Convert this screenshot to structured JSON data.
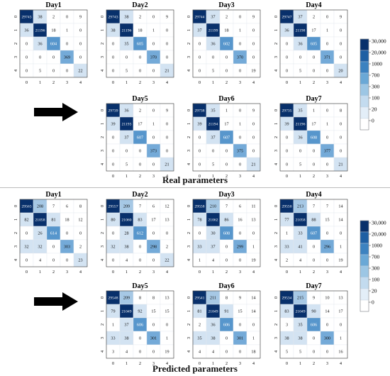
{
  "captions": {
    "real": "Real parameters",
    "predicted": "Predicted parameters"
  },
  "colorbar": {
    "ticks": [
      "30,000",
      "20,000",
      "1000",
      "700",
      "300",
      "100",
      "20",
      "0"
    ],
    "colors": [
      "#08306b",
      "#1e5fa3",
      "#3c82c0",
      "#6aa8d6",
      "#9cc6e4",
      "#c3dbef",
      "#e3eef8",
      "#ffffff"
    ]
  },
  "chart_data": [
    {
      "type": "heatmap",
      "group": "Real parameters",
      "axis_ticks": [
        "0",
        "1",
        "2",
        "3",
        "4"
      ],
      "matrices": [
        {
          "title": "Day1",
          "values": [
            [
              29743,
              38,
              2,
              0,
              9
            ],
            [
              36,
              21196,
              18,
              1,
              0
            ],
            [
              0,
              36,
              604,
              0,
              0
            ],
            [
              0,
              0,
              0,
              369,
              0
            ],
            [
              0,
              5,
              0,
              0,
              22
            ]
          ]
        },
        {
          "title": "Day2",
          "values": [
            [
              29743,
              38,
              2,
              0,
              9
            ],
            [
              38,
              21196,
              18,
              1,
              0
            ],
            [
              0,
              35,
              605,
              0,
              0
            ],
            [
              0,
              0,
              0,
              370,
              0
            ],
            [
              0,
              5,
              0,
              0,
              21
            ]
          ]
        },
        {
          "title": "Day3",
          "values": [
            [
              29744,
              37,
              2,
              0,
              9
            ],
            [
              37,
              21199,
              18,
              1,
              0
            ],
            [
              0,
              36,
              602,
              0,
              0
            ],
            [
              0,
              0,
              0,
              370,
              0
            ],
            [
              0,
              5,
              0,
              0,
              19
            ]
          ]
        },
        {
          "title": "Day4",
          "values": [
            [
              29747,
              37,
              2,
              0,
              9
            ],
            [
              36,
              21198,
              17,
              1,
              0
            ],
            [
              0,
              36,
              605,
              0,
              0
            ],
            [
              0,
              0,
              0,
              371,
              0
            ],
            [
              0,
              5,
              0,
              0,
              20
            ]
          ]
        },
        {
          "title": "Day5",
          "values": [
            [
              29739,
              36,
              2,
              0,
              9
            ],
            [
              39,
              21193,
              17,
              1,
              0
            ],
            [
              0,
              37,
              607,
              0,
              0
            ],
            [
              0,
              0,
              0,
              373,
              0
            ],
            [
              0,
              5,
              0,
              0,
              21
            ]
          ]
        },
        {
          "title": "Day6",
          "values": [
            [
              29738,
              35,
              1,
              0,
              9
            ],
            [
              39,
              21194,
              17,
              1,
              0
            ],
            [
              0,
              37,
              607,
              0,
              0
            ],
            [
              0,
              0,
              0,
              375,
              0
            ],
            [
              0,
              5,
              0,
              0,
              21
            ]
          ]
        },
        {
          "title": "Day7",
          "values": [
            [
              29735,
              35,
              1,
              0,
              8
            ],
            [
              39,
              21196,
              17,
              1,
              0
            ],
            [
              0,
              36,
              608,
              0,
              0
            ],
            [
              0,
              0,
              0,
              377,
              0
            ],
            [
              0,
              5,
              0,
              0,
              21
            ]
          ]
        }
      ]
    },
    {
      "type": "heatmap",
      "group": "Predicted parameters",
      "axis_ticks": [
        "0",
        "1",
        "2",
        "3",
        "4"
      ],
      "matrices": [
        {
          "title": "Day1",
          "values": [
            [
              29563,
              208,
              7,
              6,
              8
            ],
            [
              82,
              21058,
              81,
              18,
              12
            ],
            [
              0,
              26,
              614,
              0,
              0
            ],
            [
              32,
              32,
              0,
              303,
              2
            ],
            [
              0,
              4,
              0,
              0,
              23
            ]
          ]
        },
        {
          "title": "Day2",
          "values": [
            [
              29557,
              209,
              7,
              6,
              12
            ],
            [
              80,
              21060,
              83,
              17,
              13
            ],
            [
              0,
              28,
              612,
              0,
              0
            ],
            [
              32,
              38,
              0,
              298,
              2
            ],
            [
              0,
              4,
              0,
              0,
              22
            ]
          ]
        },
        {
          "title": "Day3",
          "values": [
            [
              29558,
              210,
              7,
              6,
              11
            ],
            [
              78,
              21062,
              86,
              16,
              13
            ],
            [
              0,
              30,
              608,
              0,
              0
            ],
            [
              33,
              37,
              0,
              299,
              1
            ],
            [
              1,
              4,
              0,
              0,
              19
            ]
          ]
        },
        {
          "title": "Day4",
          "values": [
            [
              29550,
              213,
              7,
              7,
              14
            ],
            [
              77,
              21058,
              88,
              15,
              14
            ],
            [
              1,
              33,
              607,
              0,
              0
            ],
            [
              33,
              41,
              0,
              296,
              1
            ],
            [
              2,
              4,
              0,
              0,
              19
            ]
          ]
        },
        {
          "title": "Day5",
          "values": [
            [
              29548,
              209,
              8,
              8,
              13
            ],
            [
              79,
              21049,
              92,
              15,
              15
            ],
            [
              1,
              37,
              606,
              0,
              0
            ],
            [
              33,
              38,
              0,
              301,
              1
            ],
            [
              3,
              4,
              0,
              0,
              19
            ]
          ]
        },
        {
          "title": "Day6",
          "values": [
            [
              29541,
              211,
              8,
              9,
              14
            ],
            [
              81,
              21049,
              91,
              15,
              14
            ],
            [
              2,
              36,
              606,
              0,
              0
            ],
            [
              35,
              38,
              0,
              301,
              1
            ],
            [
              4,
              4,
              0,
              0,
              18
            ]
          ]
        },
        {
          "title": "Day7",
          "values": [
            [
              29534,
              215,
              9,
              10,
              13
            ],
            [
              83,
              21049,
              90,
              14,
              17
            ],
            [
              3,
              35,
              606,
              0,
              0
            ],
            [
              38,
              38,
              0,
              300,
              1
            ],
            [
              5,
              5,
              0,
              0,
              16
            ]
          ]
        }
      ]
    }
  ]
}
